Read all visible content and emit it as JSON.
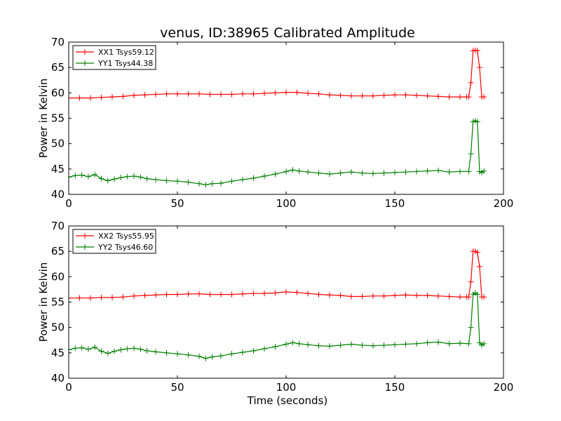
{
  "figure": {
    "title": "venus, ID:38965 Calibrated Amplitude",
    "xlabel": "Time (seconds)"
  },
  "colors": {
    "xx": "#ff0000",
    "yy": "#008000"
  },
  "chart_data": [
    {
      "type": "line",
      "title": "venus, ID:38965 Calibrated Amplitude",
      "xlabel": "",
      "ylabel": "Power in Kelvin",
      "xlim": [
        0,
        200
      ],
      "ylim": [
        40,
        70
      ],
      "xticks": [
        0,
        50,
        100,
        150,
        200
      ],
      "yticks": [
        40,
        45,
        50,
        55,
        60,
        65,
        70
      ],
      "grid": false,
      "legend": "top-left",
      "series": [
        {
          "name": "XX1 Tsys59.12",
          "color": "#ff0000",
          "x": [
            0,
            5,
            10,
            15,
            20,
            25,
            30,
            35,
            40,
            45,
            50,
            55,
            60,
            65,
            70,
            75,
            80,
            85,
            90,
            95,
            100,
            105,
            110,
            115,
            120,
            125,
            130,
            135,
            140,
            145,
            150,
            155,
            160,
            165,
            170,
            175,
            180,
            183,
            184,
            185,
            186,
            187,
            188,
            189,
            190,
            191
          ],
          "y": [
            59.0,
            59.0,
            59.0,
            59.1,
            59.2,
            59.3,
            59.5,
            59.6,
            59.7,
            59.8,
            59.8,
            59.8,
            59.8,
            59.7,
            59.7,
            59.7,
            59.8,
            59.8,
            59.9,
            60.0,
            60.1,
            60.1,
            59.9,
            59.8,
            59.6,
            59.5,
            59.4,
            59.4,
            59.4,
            59.5,
            59.6,
            59.6,
            59.5,
            59.4,
            59.3,
            59.2,
            59.2,
            59.2,
            59.2,
            62.0,
            68.3,
            68.4,
            68.3,
            65.0,
            59.2,
            59.2
          ]
        },
        {
          "name": "YY1 Tsys44.38",
          "color": "#008000",
          "x": [
            0,
            3,
            6,
            9,
            12,
            15,
            18,
            21,
            24,
            27,
            30,
            33,
            36,
            40,
            45,
            50,
            55,
            60,
            63,
            66,
            70,
            75,
            80,
            85,
            90,
            95,
            100,
            103,
            106,
            110,
            115,
            120,
            125,
            130,
            135,
            140,
            145,
            150,
            155,
            160,
            165,
            170,
            175,
            180,
            184,
            185,
            186,
            187,
            188,
            189,
            190,
            191
          ],
          "y": [
            43.4,
            43.7,
            43.8,
            43.5,
            43.9,
            43.1,
            42.7,
            43.0,
            43.3,
            43.5,
            43.6,
            43.4,
            43.1,
            42.9,
            42.7,
            42.6,
            42.4,
            42.1,
            41.9,
            42.1,
            42.2,
            42.6,
            42.9,
            43.2,
            43.6,
            44.0,
            44.5,
            44.8,
            44.6,
            44.4,
            44.2,
            44.0,
            44.2,
            44.4,
            44.2,
            44.1,
            44.2,
            44.3,
            44.4,
            44.5,
            44.6,
            44.7,
            44.4,
            44.5,
            44.5,
            48.0,
            54.3,
            54.5,
            54.3,
            44.5,
            44.3,
            44.6
          ]
        }
      ]
    },
    {
      "type": "line",
      "title": "",
      "xlabel": "Time (seconds)",
      "ylabel": "Power in Kelvin",
      "xlim": [
        0,
        200
      ],
      "ylim": [
        40,
        70
      ],
      "xticks": [
        0,
        50,
        100,
        150,
        200
      ],
      "yticks": [
        40,
        45,
        50,
        55,
        60,
        65,
        70
      ],
      "grid": false,
      "legend": "top-left",
      "series": [
        {
          "name": "XX2 Tsys55.95",
          "color": "#ff0000",
          "x": [
            0,
            5,
            10,
            15,
            20,
            25,
            30,
            35,
            40,
            45,
            50,
            55,
            60,
            65,
            70,
            75,
            80,
            85,
            90,
            95,
            100,
            105,
            110,
            115,
            120,
            125,
            130,
            135,
            140,
            145,
            150,
            155,
            160,
            165,
            170,
            175,
            180,
            183,
            184,
            185,
            186,
            187,
            188,
            189,
            190,
            191
          ],
          "y": [
            55.8,
            55.8,
            55.8,
            55.9,
            55.9,
            56.0,
            56.2,
            56.3,
            56.4,
            56.5,
            56.5,
            56.6,
            56.6,
            56.5,
            56.5,
            56.5,
            56.6,
            56.7,
            56.7,
            56.8,
            57.0,
            56.9,
            56.7,
            56.5,
            56.4,
            56.3,
            56.1,
            56.1,
            56.2,
            56.2,
            56.3,
            56.4,
            56.3,
            56.3,
            56.2,
            56.1,
            56.0,
            56.0,
            56.0,
            59.0,
            65.0,
            65.0,
            64.8,
            62.0,
            56.0,
            56.0
          ]
        },
        {
          "name": "YY2 Tsys46.60",
          "color": "#008000",
          "x": [
            0,
            3,
            6,
            9,
            12,
            15,
            18,
            21,
            24,
            27,
            30,
            33,
            36,
            40,
            45,
            50,
            55,
            60,
            63,
            66,
            70,
            75,
            80,
            85,
            90,
            95,
            100,
            103,
            106,
            110,
            115,
            120,
            125,
            130,
            135,
            140,
            145,
            150,
            155,
            160,
            165,
            170,
            175,
            180,
            184,
            185,
            186,
            187,
            188,
            189,
            190,
            191
          ],
          "y": [
            45.6,
            45.9,
            46.0,
            45.7,
            46.1,
            45.3,
            44.9,
            45.3,
            45.6,
            45.8,
            45.9,
            45.7,
            45.4,
            45.2,
            45.0,
            44.8,
            44.6,
            44.3,
            43.9,
            44.2,
            44.4,
            44.8,
            45.1,
            45.4,
            45.8,
            46.2,
            46.7,
            47.0,
            46.8,
            46.6,
            46.4,
            46.3,
            46.5,
            46.7,
            46.5,
            46.4,
            46.5,
            46.6,
            46.7,
            46.8,
            47.0,
            47.1,
            46.8,
            46.9,
            46.8,
            50.0,
            56.5,
            56.8,
            56.5,
            47.0,
            46.5,
            46.8
          ]
        }
      ]
    }
  ]
}
